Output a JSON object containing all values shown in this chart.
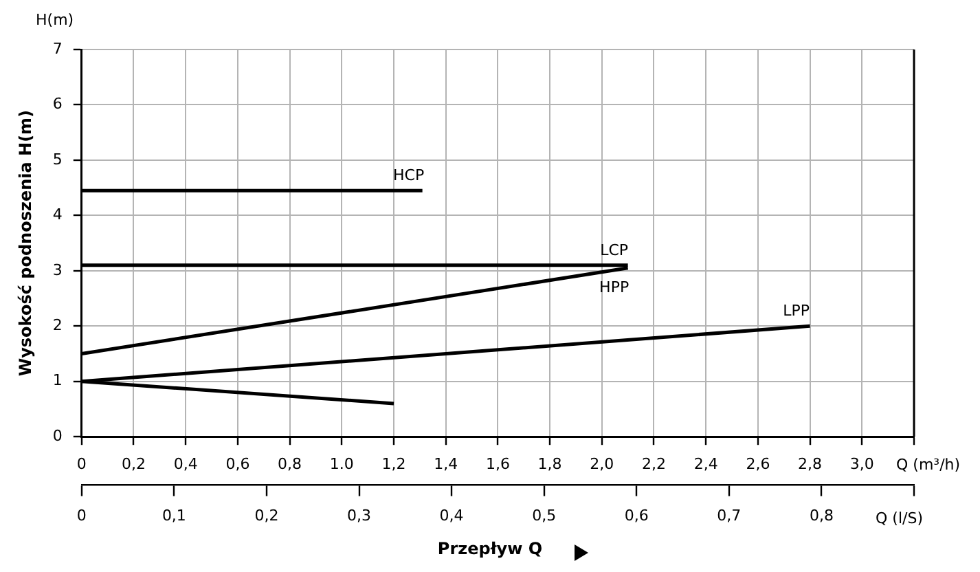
{
  "chart_data": {
    "type": "line",
    "ylabel": "Wysokość podnoszenia H(m)",
    "xlabel": "Przepływ Q",
    "x2label": "Q (l/S)",
    "annotations": [
      "H(m)",
      "Q (m³/h)"
    ],
    "series": [
      {
        "name": "HCP",
        "color": "#000000",
        "x": [
          0,
          1.31
        ],
        "values": [
          4.45,
          4.45
        ]
      },
      {
        "name": "LCP",
        "color": "#000000",
        "x": [
          0,
          2.1
        ],
        "values": [
          3.1,
          3.1
        ]
      },
      {
        "name": "HPP",
        "color": "#000000",
        "x": [
          0,
          2.1
        ],
        "values": [
          1.5,
          3.05
        ]
      },
      {
        "name": "LPP",
        "color": "#000000",
        "x": [
          0,
          2.8
        ],
        "values": [
          1,
          2
        ]
      },
      {
        "color": "#000000",
        "x": [
          0,
          1.2
        ],
        "values": [
          1,
          0.6
        ]
      }
    ],
    "xlim": [
      0,
      3.2
    ],
    "xticks": [
      0,
      {
        "value": 0.2,
        "label": "0,2"
      },
      {
        "value": 0.4,
        "label": "0,4"
      },
      {
        "value": 0.6,
        "label": "0,6"
      },
      {
        "value": 0.8,
        "label": "0,8"
      },
      {
        "value": 1,
        "label": "1.0"
      },
      {
        "value": 1.2,
        "label": "1,2"
      },
      {
        "value": 1.4,
        "label": "1,4"
      },
      {
        "value": 1.6,
        "label": "1,6"
      },
      {
        "value": 1.8,
        "label": "1,8"
      },
      {
        "value": 2,
        "label": "2,0"
      },
      {
        "value": 2.2,
        "label": "2,2"
      },
      {
        "value": 2.4,
        "label": "2,4"
      },
      {
        "value": 2.6,
        "label": "2,6"
      },
      {
        "value": 2.8,
        "label": "2,8"
      },
      {
        "value": 3,
        "label": "3,0"
      },
      {
        "value": 3.2,
        "label": null
      }
    ],
    "x2lim": [
      0,
      0.9
    ],
    "x2ticks": [
      0,
      {
        "value": 0.1,
        "label": "0,1"
      },
      {
        "value": 0.2,
        "label": "0,2"
      },
      {
        "value": 0.3,
        "label": "0,3"
      },
      {
        "value": 0.4,
        "label": "0,4"
      },
      {
        "value": 0.5,
        "label": "0,5"
      },
      {
        "value": 0.6,
        "label": "0,6"
      },
      {
        "value": 0.7,
        "label": "0,7"
      },
      {
        "value": 0.8,
        "label": "0,8"
      },
      {
        "value": 0.9,
        "label": null
      }
    ],
    "ylim": [
      0,
      7
    ],
    "yticks": [
      0,
      1,
      2,
      3,
      4,
      5,
      6,
      7
    ],
    "grid": true,
    "legend": false,
    "marker": "none",
    "line_style": "solid"
  }
}
